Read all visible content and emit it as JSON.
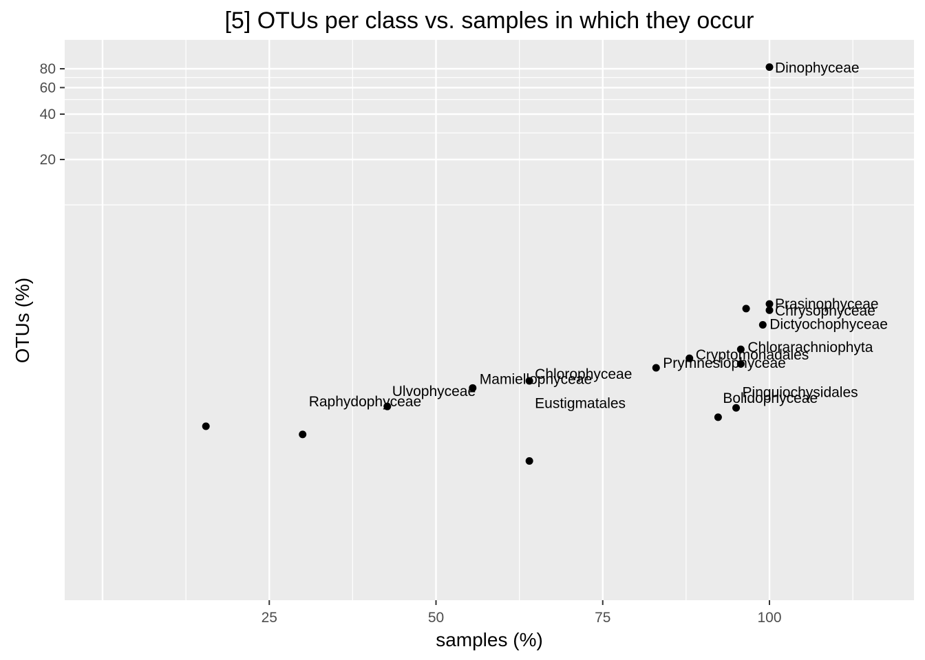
{
  "chart_data": {
    "type": "scatter",
    "title": "[5] OTUs per class vs. samples in which they occur",
    "xlabel": "samples (%)",
    "ylabel": "OTUs (%)",
    "xlim": [
      0,
      120
    ],
    "y_scale": "log",
    "x_ticks": [
      25,
      50,
      75,
      100
    ],
    "y_ticks": [
      20,
      40,
      60,
      80
    ],
    "grid": true,
    "legend": "none",
    "colors": {
      "panel": "#ebebeb",
      "grid": "#ffffff",
      "point": "#000000"
    },
    "points": [
      {
        "x": 100,
        "y": 82,
        "label": "Dinophyceae"
      },
      {
        "x": 100,
        "y": 2.2,
        "label": "Prasinophyceae"
      },
      {
        "x": 100,
        "y": 2.0,
        "label": "Chrysophyceae"
      },
      {
        "x": 96.5,
        "y": 2.05,
        "label": ""
      },
      {
        "x": 99,
        "y": 1.6,
        "label": "Dictyochophyceae"
      },
      {
        "x": 95.7,
        "y": 1.1,
        "label": "Chlorarachniophyta"
      },
      {
        "x": 88,
        "y": 0.96,
        "label": "Cryptomonadales"
      },
      {
        "x": 95.7,
        "y": 0.88,
        "label": ""
      },
      {
        "x": 83,
        "y": 0.83,
        "label": "Prymnesiophyceae"
      },
      {
        "x": 64,
        "y": 0.68,
        "label": "Chlorophyceae"
      },
      {
        "x": 55.5,
        "y": 0.61,
        "label": "Mamiellophyceae"
      },
      {
        "x": 42.7,
        "y": 0.46,
        "label": "Ulvophyceae"
      },
      {
        "x": 95,
        "y": 0.45,
        "label": "Pinguiochysidales"
      },
      {
        "x": 92.3,
        "y": 0.39,
        "label": "Bolidophyceae"
      },
      {
        "x": 15.5,
        "y": 0.34,
        "label": ""
      },
      {
        "x": 30,
        "y": 0.3,
        "label": "Raphydophyceae"
      },
      {
        "x": 64,
        "y": 0.2,
        "label": "Eustigmatales"
      }
    ]
  }
}
